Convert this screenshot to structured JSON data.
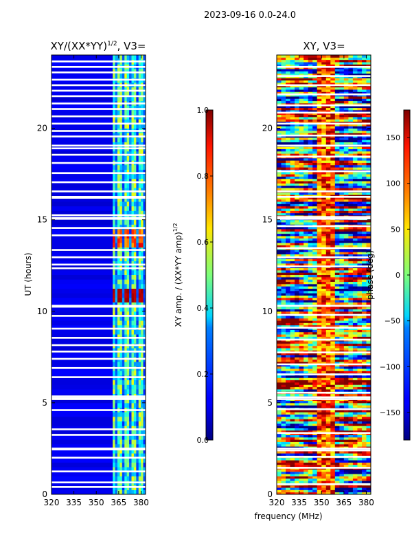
{
  "figure": {
    "suptitle": "2023-09-16 0.0-24.0",
    "shared_xlabel": "frequency (MHz)"
  },
  "chart_data": [
    {
      "type": "heatmap",
      "title": "XY/(XX*YY)",
      "title_superscript": "1/2",
      "title_suffix": ", V3=",
      "xlabel": "",
      "ylabel": "UT (hours)",
      "xlim": [
        320,
        383
      ],
      "ylim": [
        0,
        24
      ],
      "xticks": [
        "320",
        "335",
        "350",
        "365",
        "380"
      ],
      "xtick_values": [
        320,
        335,
        350,
        365,
        380
      ],
      "yticks": [
        "0",
        "5",
        "10",
        "15",
        "20"
      ],
      "ytick_values": [
        0,
        5,
        10,
        15,
        20
      ],
      "colorbar": {
        "label": "XY amp. / (XX*YY amp)",
        "label_superscript": "1/2",
        "range": [
          0.0,
          1.0
        ],
        "ticks": [
          "0.0",
          "0.2",
          "0.4",
          "0.6",
          "0.8",
          "1.0"
        ],
        "tick_values": [
          0.0,
          0.2,
          0.4,
          0.6,
          0.8,
          1.0
        ],
        "colormap": "jet"
      },
      "description_values": {
        "low_band_mhz": [
          320,
          361
        ],
        "low_band_level": 0.08,
        "high_band_mhz": [
          361,
          383
        ],
        "high_band_level": 0.45,
        "hot_block_hours": [
          10.3,
          11.2
        ],
        "hot_block_level": 0.93
      },
      "gap_hours": [
        0.35,
        0.6,
        1.2,
        1.95,
        2.4,
        2.45,
        3.2,
        3.5,
        4.55,
        5.15,
        5.2,
        5.3,
        6.35,
        6.85,
        7.35,
        7.75,
        8.1,
        8.5,
        9.0,
        9.7,
        10.2,
        10.25,
        12.3,
        12.5,
        12.9,
        13.3,
        14.1,
        14.5,
        15.0,
        15.05,
        15.2,
        16.15,
        16.2,
        16.5,
        17.0,
        17.5,
        18.05,
        18.5,
        18.85,
        19.0,
        19.5,
        19.8,
        20.2,
        20.6,
        21.0,
        21.3,
        21.7,
        22.0,
        22.3,
        22.6,
        23.0,
        23.3,
        23.6
      ]
    },
    {
      "type": "heatmap",
      "title": "XY, V3=",
      "xlabel": "frequency (MHz)",
      "ylabel": "",
      "xlim": [
        320,
        383
      ],
      "ylim": [
        0,
        24
      ],
      "xticks": [
        "320",
        "335",
        "350",
        "365",
        "380"
      ],
      "xtick_values": [
        320,
        335,
        350,
        365,
        380
      ],
      "yticks": [
        "0",
        "5",
        "10",
        "15",
        "20"
      ],
      "ytick_values": [
        0,
        5,
        10,
        15,
        20
      ],
      "colorbar": {
        "label": "phase (deg)",
        "range": [
          -180,
          180
        ],
        "ticks": [
          "−150",
          "−100",
          "−50",
          "0",
          "50",
          "100",
          "150"
        ],
        "tick_values": [
          -150,
          -100,
          -50,
          0,
          50,
          100,
          150
        ],
        "colormap": "jet"
      },
      "gap_hours": [
        0.5,
        1.4,
        2.0,
        2.35,
        2.45,
        3.3,
        4.6,
        5.15,
        5.25,
        5.5,
        6.5,
        7.05,
        7.7,
        8.4,
        9.05,
        9.75,
        10.25,
        12.4,
        12.9,
        13.4,
        14.6,
        15.0,
        15.1,
        16.2,
        16.5,
        17.6,
        18.4,
        19.0,
        19.55,
        20.2,
        20.8,
        21.2,
        21.8,
        22.3,
        22.8,
        23.3
      ]
    }
  ]
}
